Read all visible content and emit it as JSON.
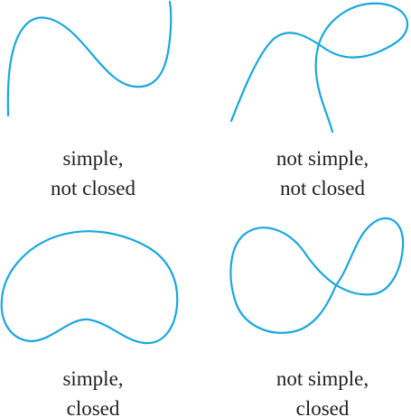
{
  "colors": {
    "curve": "#1aa7dd",
    "text": "#231f20"
  },
  "panels": [
    {
      "id": "simple-not-closed",
      "line1": "simple,",
      "line2": "not closed"
    },
    {
      "id": "not-simple-not-closed",
      "line1": "not simple,",
      "line2": "not closed"
    },
    {
      "id": "simple-closed",
      "line1": "simple,",
      "line2": "closed"
    },
    {
      "id": "not-simple-closed",
      "line1": "not simple,",
      "line2": "closed"
    }
  ]
}
